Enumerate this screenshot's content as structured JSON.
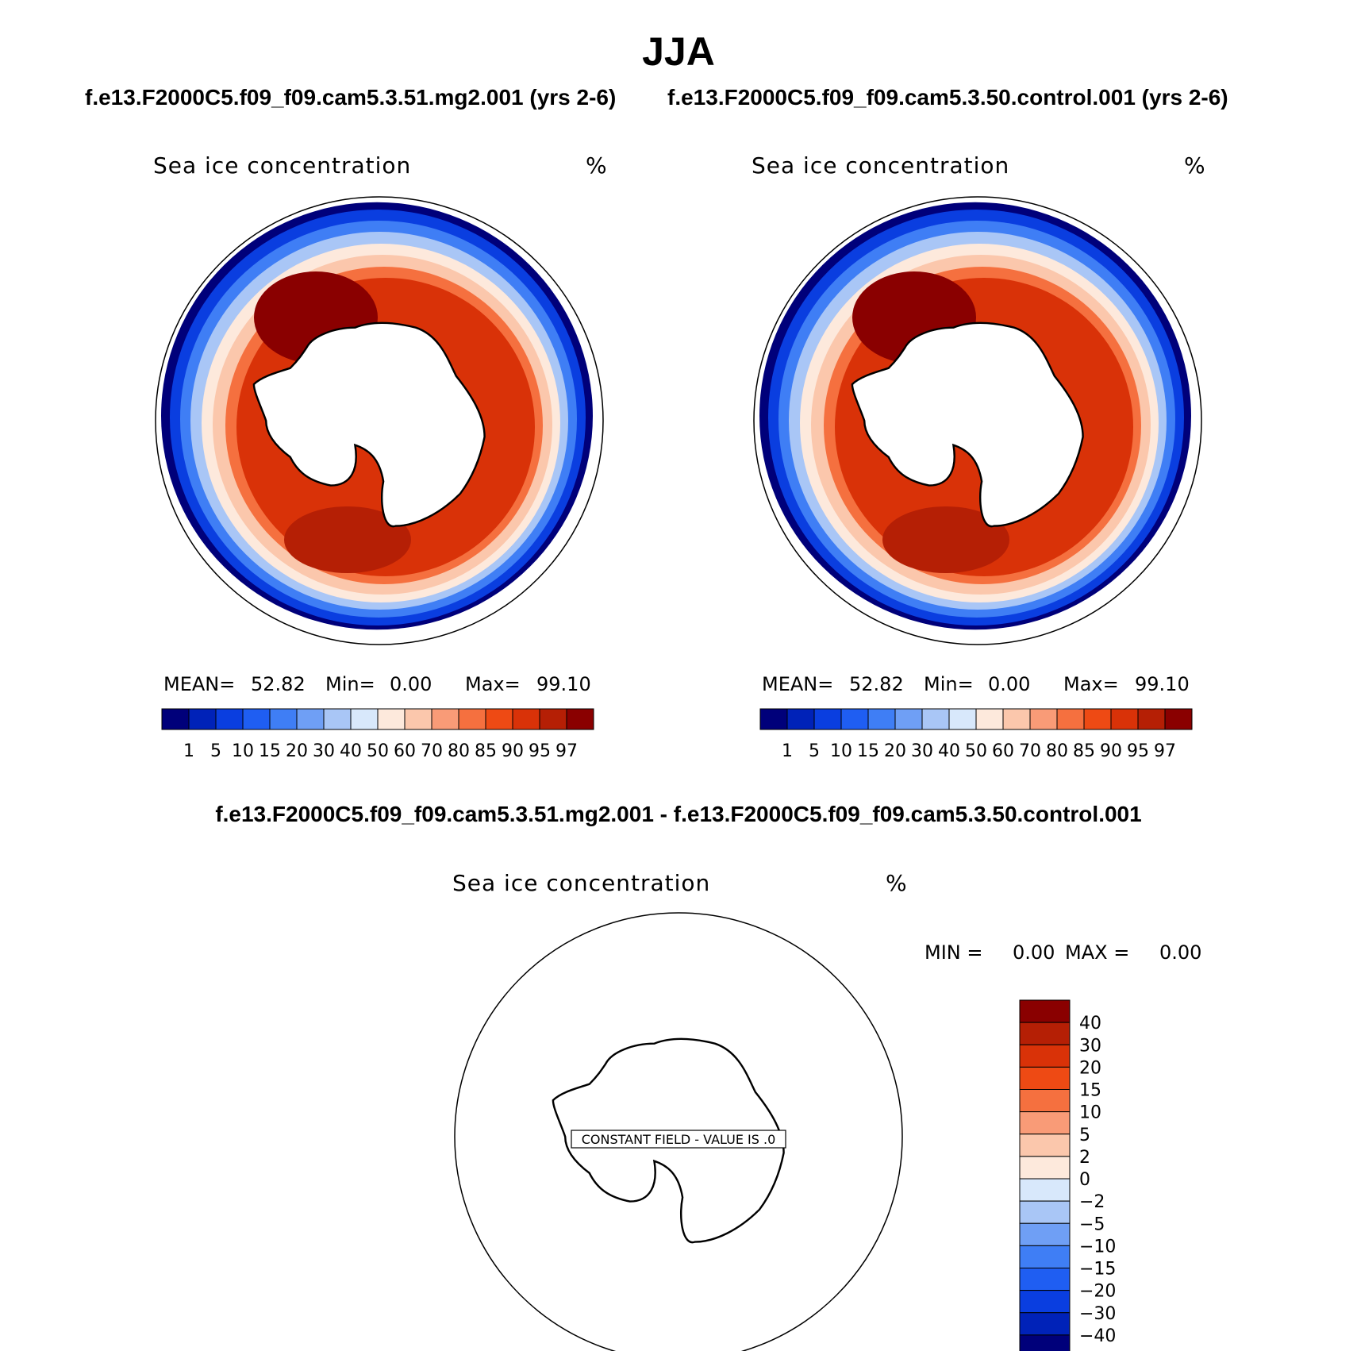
{
  "title": "JJA",
  "panels": [
    {
      "case": "f.e13.F2000C5.f09_f09.cam5.3.51.mg2.001 (yrs 2-6)",
      "variable": "Sea ice concentration",
      "units": "%",
      "stats": {
        "mean_label": "MEAN=",
        "mean": "52.82",
        "min_label": "Min=",
        "min": "0.00",
        "max_label": "Max=",
        "max": "99.10"
      }
    },
    {
      "case": "f.e13.F2000C5.f09_f09.cam5.3.50.control.001 (yrs 2-6)",
      "variable": "Sea ice concentration",
      "units": "%",
      "stats": {
        "mean_label": "MEAN=",
        "mean": "52.82",
        "min_label": "Min=",
        "min": "0.00",
        "max_label": "Max=",
        "max": "99.10"
      }
    }
  ],
  "colorbar": {
    "labels": [
      "1",
      "5",
      "10",
      "15",
      "20",
      "30",
      "40",
      "50",
      "60",
      "70",
      "80",
      "85",
      "90",
      "95",
      "97"
    ],
    "colors": [
      "#00007a",
      "#0022b8",
      "#0a3ee0",
      "#1f5ef2",
      "#3f7ef5",
      "#6f9ff5",
      "#a9c6f6",
      "#d8e8fb",
      "#fde9dc",
      "#fbc7ac",
      "#f99b77",
      "#f5703f",
      "#ee4a14",
      "#d93208",
      "#b51f05",
      "#8a0000"
    ]
  },
  "difference": {
    "title": "f.e13.F2000C5.f09_f09.cam5.3.51.mg2.001 - f.e13.F2000C5.f09_f09.cam5.3.50.control.001",
    "variable": "Sea ice concentration",
    "units": "%",
    "min_label": "MIN =",
    "min": "0.00",
    "max_label": "MAX =",
    "max": "0.00",
    "message": "CONSTANT FIELD - VALUE IS .0",
    "colorbar": {
      "labels": [
        "40",
        "30",
        "20",
        "15",
        "10",
        "5",
        "2",
        "0",
        "−2",
        "−5",
        "−10",
        "−15",
        "−20",
        "−30",
        "−40"
      ],
      "colors": [
        "#8a0000",
        "#b51f05",
        "#d93208",
        "#ee4a14",
        "#f5703f",
        "#f99b77",
        "#fbc7ac",
        "#fde9dc",
        "#d8e8fb",
        "#a9c6f6",
        "#6f9ff5",
        "#3f7ef5",
        "#1f5ef2",
        "#0a3ee0",
        "#0022b8",
        "#00007a"
      ]
    }
  }
}
